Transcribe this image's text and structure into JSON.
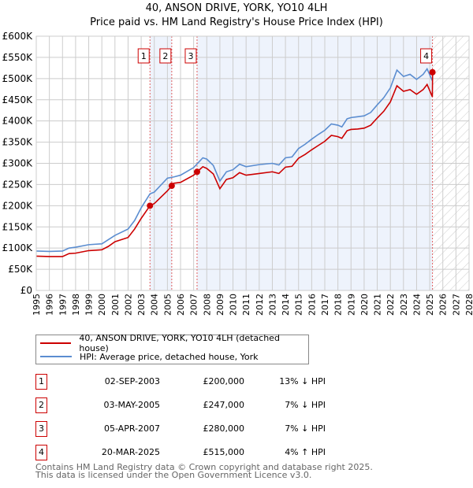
{
  "chart_data": {
    "type": "line",
    "title": "40, ANSON DRIVE, YORK, YO10 4LH",
    "subtitle": "Price paid vs. HM Land Registry's House Price Index (HPI)",
    "xlim": [
      1995,
      2028
    ],
    "ylim": [
      0,
      600000
    ],
    "x_ticks": [
      "1995",
      "1996",
      "1997",
      "1998",
      "1999",
      "2000",
      "2001",
      "2002",
      "2003",
      "2004",
      "2005",
      "2006",
      "2007",
      "2008",
      "2009",
      "2010",
      "2011",
      "2012",
      "2013",
      "2014",
      "2015",
      "2016",
      "2017",
      "2018",
      "2019",
      "2020",
      "2021",
      "2022",
      "2023",
      "2024",
      "2025",
      "2026",
      "2027",
      "2028"
    ],
    "y_ticks": [
      {
        "v": 0,
        "label": "£0"
      },
      {
        "v": 50000,
        "label": "£50K"
      },
      {
        "v": 100000,
        "label": "£100K"
      },
      {
        "v": 150000,
        "label": "£150K"
      },
      {
        "v": 200000,
        "label": "£200K"
      },
      {
        "v": 250000,
        "label": "£250K"
      },
      {
        "v": 300000,
        "label": "£300K"
      },
      {
        "v": 350000,
        "label": "£350K"
      },
      {
        "v": 400000,
        "label": "£400K"
      },
      {
        "v": 450000,
        "label": "£450K"
      },
      {
        "v": 500000,
        "label": "£500K"
      },
      {
        "v": 550000,
        "label": "£550K"
      },
      {
        "v": 600000,
        "label": "£600K"
      }
    ],
    "grid": true,
    "series": [
      {
        "name": "40, ANSON DRIVE, YORK, YO10 4LH (detached house)",
        "color": "#cc0000",
        "x": [
          1995,
          1996,
          1997,
          1997.5,
          1998,
          1999,
          2000,
          2000.5,
          2001,
          2002,
          2002.5,
          2003,
          2003.67,
          2004,
          2005,
          2005.33,
          2005.5,
          2006,
          2007,
          2007.27,
          2007.7,
          2008,
          2008.5,
          2009,
          2009.5,
          2010,
          2010.5,
          2011,
          2012,
          2013,
          2013.5,
          2014,
          2014.5,
          2015,
          2015.5,
          2016,
          2016.5,
          2017,
          2017.5,
          2018,
          2018.3,
          2018.7,
          2019,
          2019.5,
          2020,
          2020.5,
          2021,
          2021.5,
          2022,
          2022.5,
          2023,
          2023.5,
          2024,
          2024.5,
          2024.8,
          2025.2,
          2025.22
        ],
        "y": [
          81000,
          80000,
          80000,
          87000,
          88000,
          94000,
          96000,
          104000,
          115000,
          125000,
          145000,
          170000,
          200000,
          205000,
          235000,
          247000,
          253000,
          255000,
          272000,
          280000,
          292000,
          288000,
          275000,
          240000,
          262000,
          266000,
          278000,
          272000,
          276000,
          280000,
          276000,
          291000,
          293000,
          312000,
          321000,
          332000,
          342000,
          352000,
          366000,
          363000,
          359000,
          377000,
          380000,
          381000,
          383000,
          390000,
          407000,
          423000,
          445000,
          483000,
          470000,
          474000,
          463000,
          474000,
          486000,
          457000,
          515000
        ]
      },
      {
        "name": "HPI: Average price, detached house, York",
        "color": "#5b8dd0",
        "x": [
          1995,
          1996,
          1997,
          1997.5,
          1998,
          1999,
          2000,
          2000.5,
          2001,
          2002,
          2002.5,
          2003,
          2003.67,
          2004,
          2005,
          2005.5,
          2006,
          2007,
          2007.7,
          2008,
          2008.5,
          2009,
          2009.5,
          2010,
          2010.5,
          2011,
          2012,
          2013,
          2013.5,
          2014,
          2014.5,
          2015,
          2015.5,
          2016,
          2016.5,
          2017,
          2017.5,
          2018,
          2018.3,
          2018.7,
          2019,
          2019.5,
          2020,
          2020.5,
          2021,
          2021.5,
          2022,
          2022.5,
          2023,
          2023.5,
          2024,
          2024.5,
          2024.8,
          2025.2
        ],
        "y": [
          93000,
          92000,
          93000,
          100000,
          102000,
          108000,
          110000,
          120000,
          130000,
          145000,
          165000,
          195000,
          228000,
          232000,
          265000,
          268000,
          272000,
          290000,
          313000,
          310000,
          295000,
          258000,
          280000,
          285000,
          298000,
          292000,
          297000,
          300000,
          296000,
          313000,
          315000,
          335000,
          345000,
          357000,
          368000,
          378000,
          393000,
          390000,
          386000,
          405000,
          408000,
          410000,
          412000,
          420000,
          438000,
          455000,
          478000,
          520000,
          505000,
          510000,
          498000,
          510000,
          523000,
          495000
        ]
      }
    ],
    "sales": [
      {
        "n": "1",
        "x": 2003.67,
        "date": "02-SEP-2003",
        "price_value": 200000,
        "price": "£200,000",
        "hpi": "13% ↓ HPI"
      },
      {
        "n": "2",
        "x": 2005.33,
        "date": "03-MAY-2005",
        "price_value": 247000,
        "price": "£247,000",
        "hpi": "7% ↓ HPI"
      },
      {
        "n": "3",
        "x": 2007.26,
        "date": "05-APR-2007",
        "price_value": 280000,
        "price": "£280,000",
        "hpi": "7% ↓ HPI"
      },
      {
        "n": "4",
        "x": 2025.21,
        "date": "20-MAR-2025",
        "price_value": 515000,
        "price": "£515,000",
        "hpi": "4% ↑ HPI"
      }
    ],
    "forecast_start": 2025.21
  },
  "footer": {
    "line1": "Contains HM Land Registry data © Crown copyright and database right 2025.",
    "line2": "This data is licensed under the Open Government Licence v3.0."
  }
}
